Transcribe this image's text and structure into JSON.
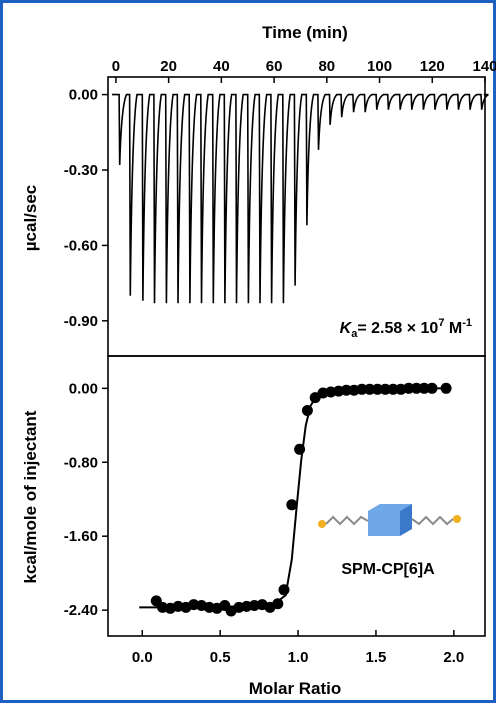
{
  "chart_data": [
    {
      "type": "line",
      "title": "",
      "x_top_label": "Time (min)",
      "x_ticks": [
        0,
        20,
        40,
        60,
        80,
        100,
        120,
        140
      ],
      "xlim": [
        -3,
        140
      ],
      "ylabel": "µcal/sec",
      "y_ticks": [
        "0.00",
        "-0.30",
        "-0.60",
        "-0.90"
      ],
      "y_tick_values": [
        0.0,
        -0.3,
        -0.6,
        -0.9
      ],
      "ylim": [
        -1.04,
        0.07
      ],
      "grid": false,
      "annotation": {
        "k": "K",
        "sub": "a",
        "value": "= 2.58 ×  10",
        "exp": "7",
        "unit": " M",
        "unit_exp": "-1"
      },
      "injections": {
        "times": [
          1.2,
          5.2,
          10.0,
          14.4,
          18.9,
          23.3,
          27.8,
          32.2,
          36.7,
          41.1,
          45.5,
          50.0,
          54.4,
          58.8,
          63.3,
          67.7,
          72.2,
          76.6,
          81.0,
          85.4,
          89.9,
          94.3,
          98.7,
          103.1,
          107.6,
          112.0,
          116.4,
          120.8,
          125.3,
          129.7,
          134.1,
          138.5
        ],
        "peak_values": [
          -0.28,
          -0.8,
          -0.82,
          -0.83,
          -0.83,
          -0.83,
          -0.83,
          -0.83,
          -0.83,
          -0.83,
          -0.83,
          -0.83,
          -0.83,
          -0.83,
          -0.83,
          -0.76,
          -0.52,
          -0.22,
          -0.12,
          -0.09,
          -0.07,
          -0.07,
          -0.06,
          -0.06,
          -0.06,
          -0.06,
          -0.06,
          -0.06,
          -0.06,
          -0.06,
          -0.06,
          -0.06
        ]
      }
    },
    {
      "type": "scatter",
      "xlabel": "Molar Ratio",
      "ylabel": "kcal/mole of injectant",
      "x_ticks": [
        "0.0",
        "0.5",
        "1.0",
        "1.5",
        "2.0"
      ],
      "x_tick_values": [
        0.0,
        0.5,
        1.0,
        1.5,
        2.0
      ],
      "y_ticks": [
        "0.00",
        "-0.80",
        "-1.60",
        "-2.40"
      ],
      "y_tick_values": [
        0.0,
        -0.8,
        -1.6,
        -2.4
      ],
      "xlim": [
        -0.22,
        2.2
      ],
      "ylim": [
        -2.68,
        0.35
      ],
      "grid": false,
      "points": {
        "x": [
          0.09,
          0.13,
          0.18,
          0.23,
          0.28,
          0.33,
          0.38,
          0.43,
          0.48,
          0.53,
          0.57,
          0.62,
          0.67,
          0.72,
          0.77,
          0.82,
          0.87,
          0.91,
          0.96,
          1.01,
          1.06,
          1.11,
          1.16,
          1.21,
          1.26,
          1.31,
          1.36,
          1.41,
          1.46,
          1.51,
          1.56,
          1.61,
          1.66,
          1.71,
          1.76,
          1.81,
          1.86,
          1.95
        ],
        "y": [
          -2.3,
          -2.37,
          -2.38,
          -2.36,
          -2.37,
          -2.34,
          -2.35,
          -2.37,
          -2.38,
          -2.35,
          -2.41,
          -2.37,
          -2.36,
          -2.35,
          -2.34,
          -2.37,
          -2.33,
          -2.18,
          -1.26,
          -0.66,
          -0.24,
          -0.1,
          -0.05,
          -0.04,
          -0.03,
          -0.02,
          -0.02,
          -0.01,
          -0.01,
          -0.01,
          -0.01,
          -0.01,
          -0.01,
          0.0,
          0.0,
          0.0,
          0.0,
          0.0
        ]
      },
      "fit_line": {
        "x": [
          -0.02,
          0.3,
          0.6,
          0.85,
          0.92,
          0.96,
          0.99,
          1.02,
          1.05,
          1.08,
          1.12,
          1.18,
          1.3,
          1.5,
          1.7,
          1.95
        ],
        "y": [
          -2.37,
          -2.37,
          -2.36,
          -2.33,
          -2.24,
          -1.85,
          -1.3,
          -0.78,
          -0.4,
          -0.19,
          -0.08,
          -0.04,
          -0.02,
          -0.01,
          -0.005,
          0.0
        ]
      },
      "inset": {
        "label": "SPM-CP[6]A",
        "colors": {
          "box": "#6fa8e8",
          "box_dark": "#3a78c9",
          "chain": "#8a8a8a",
          "terminal": "#f0b020"
        }
      }
    }
  ]
}
